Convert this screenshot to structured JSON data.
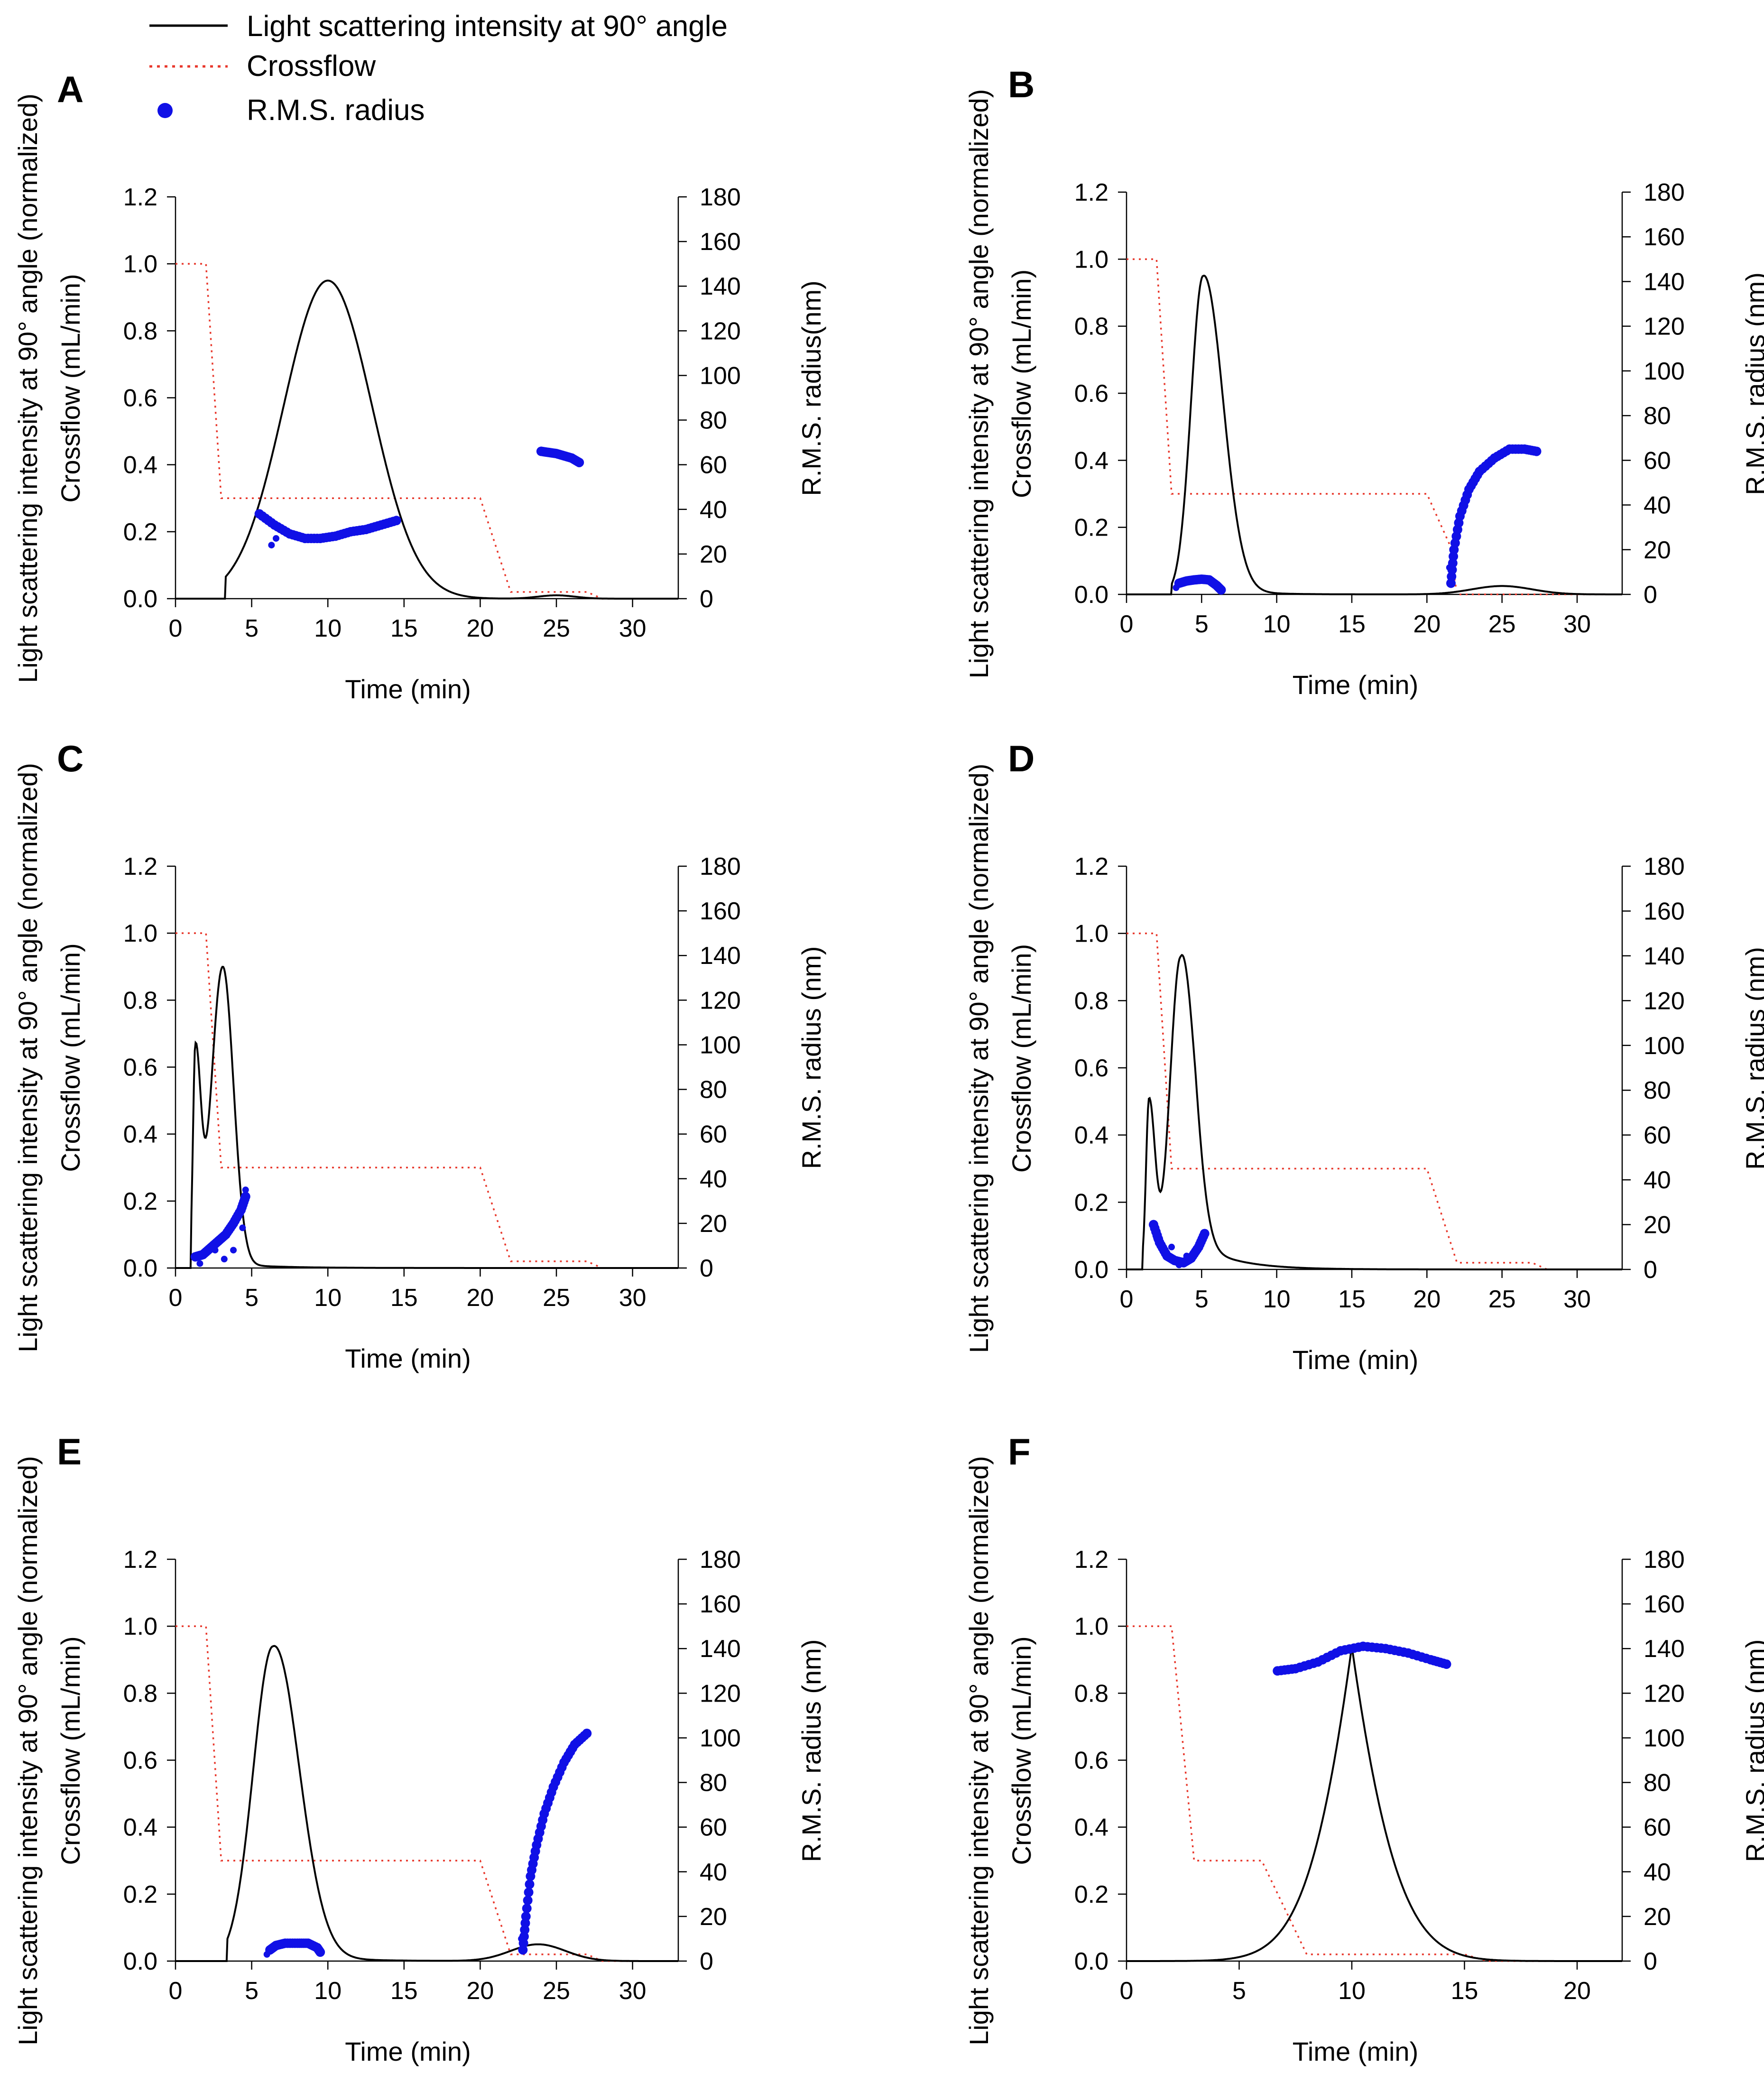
{
  "legend": {
    "light_scattering": "Light scattering intensity at 90° angle",
    "crossflow": "Crossflow",
    "rms": "R.M.S. radius"
  },
  "colors": {
    "ls": "#000000",
    "crossflow": "#e8382c",
    "rms": "#1010e6"
  },
  "chart_data": [
    {
      "panel": "A",
      "type": "line",
      "xlabel": "Time (min)",
      "ylabel_outer": "Light scattering intensity at 90° angle (normalized)",
      "ylabel_inner": "Crossflow (mL/min)",
      "ylabel_right": "R.M.S. radius(nm)",
      "xlim": [
        0,
        33
      ],
      "xticks": [
        0,
        5,
        10,
        15,
        20,
        25,
        30
      ],
      "ylim": [
        0,
        1.2
      ],
      "yticks": [
        "0.0",
        "0.2",
        "0.4",
        "0.6",
        "0.8",
        "1.0",
        "1.2"
      ],
      "y2lim": [
        0,
        180
      ],
      "y2ticks": [
        0,
        20,
        40,
        60,
        80,
        100,
        120,
        140,
        160,
        180
      ],
      "crossflow": [
        [
          0,
          1.0
        ],
        [
          2,
          1.0
        ],
        [
          3,
          0.3
        ],
        [
          20,
          0.3
        ],
        [
          22,
          0.02
        ],
        [
          27,
          0.02
        ],
        [
          28,
          0
        ],
        [
          33,
          0
        ]
      ],
      "scatter_peaks": [
        {
          "c": 10,
          "h": 0.95,
          "wl": 2.9,
          "wr": 2.9
        }
      ],
      "ls_start": 3.3,
      "bumps": [
        {
          "c": 25,
          "h": 0.01,
          "w": 1.2
        }
      ],
      "rms_segments": [
        {
          "points": [
            [
              5.5,
              38
            ],
            [
              6.5,
              33
            ],
            [
              7.5,
              29
            ],
            [
              8.5,
              27
            ],
            [
              9.5,
              27
            ],
            [
              10.5,
              28
            ],
            [
              11.5,
              30
            ],
            [
              12.5,
              31
            ],
            [
              13.5,
              33
            ],
            [
              14.5,
              35
            ]
          ]
        },
        {
          "points": [
            [
              24,
              66
            ],
            [
              24.5,
              65.5
            ],
            [
              25,
              65
            ],
            [
              25.5,
              64
            ],
            [
              26,
              63
            ],
            [
              26.5,
              61
            ]
          ]
        }
      ],
      "rms_stray": [
        [
          6.3,
          24
        ],
        [
          6.6,
          27
        ]
      ]
    },
    {
      "panel": "B",
      "type": "line",
      "xlabel": "Time (min)",
      "ylabel_outer": "Light scattering intensity at 90° angle (normalized)",
      "ylabel_inner": "Crossflow (mL/min)",
      "ylabel_right": "R.M.S. radius (nm)",
      "xlim": [
        0,
        33
      ],
      "xticks": [
        0,
        5,
        10,
        15,
        20,
        25,
        30
      ],
      "ylim": [
        0,
        1.2
      ],
      "yticks": [
        "0.0",
        "0.2",
        "0.4",
        "0.6",
        "0.8",
        "1.0",
        "1.2"
      ],
      "y2lim": [
        0,
        180
      ],
      "y2ticks": [
        0,
        20,
        40,
        60,
        80,
        100,
        120,
        140,
        160,
        180
      ],
      "crossflow": [
        [
          0,
          1.0
        ],
        [
          2,
          1.0
        ],
        [
          3,
          0.3
        ],
        [
          20,
          0.3
        ],
        [
          21.5,
          0.15
        ],
        [
          22,
          0
        ],
        [
          33,
          0
        ]
      ],
      "scatter_peaks": [
        {
          "c": 5.1,
          "h": 0.95,
          "wl": 0.8,
          "wr": 1.3
        }
      ],
      "ls_start": 3.0,
      "tail": {
        "h": 0.02,
        "tau": 2
      },
      "bumps": [
        {
          "c": 25,
          "h": 0.025,
          "w": 2
        }
      ],
      "rms_segments": [
        {
          "points": [
            [
              3.5,
              5
            ],
            [
              4,
              6
            ],
            [
              4.5,
              6.5
            ],
            [
              5,
              6.8
            ],
            [
              5.5,
              6.5
            ],
            [
              6,
              4
            ],
            [
              6.3,
              2
            ]
          ]
        },
        {
          "points": [
            [
              21.6,
              5
            ],
            [
              21.8,
              20
            ],
            [
              22.2,
              35
            ],
            [
              22.8,
              47
            ],
            [
              23.5,
              55
            ],
            [
              24.5,
              61
            ],
            [
              25.5,
              65
            ],
            [
              26.5,
              65
            ],
            [
              27.3,
              64
            ]
          ]
        }
      ],
      "rms_stray": [
        [
          3.3,
          3
        ],
        [
          21.5,
          12
        ]
      ]
    },
    {
      "panel": "C",
      "type": "line",
      "xlabel": "Time (min)",
      "ylabel_outer": "Light scattering intensity at 90° angle (normalized)",
      "ylabel_inner": "Crossflow (mL/min)",
      "ylabel_right": "R.M.S. radius (nm)",
      "xlim": [
        0,
        33
      ],
      "xticks": [
        0,
        5,
        10,
        15,
        20,
        25,
        30
      ],
      "ylim": [
        0,
        1.2
      ],
      "yticks": [
        "0.0",
        "0.2",
        "0.4",
        "0.6",
        "0.8",
        "1.0",
        "1.2"
      ],
      "y2lim": [
        0,
        180
      ],
      "y2ticks": [
        0,
        20,
        40,
        60,
        80,
        100,
        120,
        140,
        160,
        180
      ],
      "crossflow": [
        [
          0,
          1.0
        ],
        [
          2,
          1.0
        ],
        [
          3,
          0.3
        ],
        [
          20,
          0.3
        ],
        [
          22,
          0.02
        ],
        [
          27,
          0.02
        ],
        [
          28,
          0
        ],
        [
          33,
          0
        ]
      ],
      "scatter_peaks": [
        {
          "c": 1.3,
          "h": 0.62,
          "wl": 0.15,
          "wr": 0.35
        },
        {
          "c": 3.1,
          "h": 0.9,
          "wl": 0.75,
          "wr": 0.7
        }
      ],
      "ls_start": 1.0,
      "tail": {
        "h": 0.01,
        "tau": 3
      },
      "bumps": [],
      "rms_segments": [
        {
          "points": [
            [
              1.3,
              5
            ],
            [
              1.8,
              6
            ],
            [
              2.3,
              9
            ],
            [
              2.8,
              12
            ],
            [
              3.3,
              15
            ],
            [
              3.8,
              20
            ],
            [
              4.3,
              26
            ],
            [
              4.6,
              32
            ]
          ]
        }
      ],
      "rms_stray": [
        [
          1.6,
          2
        ],
        [
          2.6,
          8
        ],
        [
          3.2,
          4
        ],
        [
          3.8,
          8
        ],
        [
          4.4,
          18
        ],
        [
          4.6,
          35
        ]
      ]
    },
    {
      "panel": "D",
      "type": "line",
      "xlabel": "Time (min)",
      "ylabel_outer": "Light scattering intensity at 90° angle (normalized)",
      "ylabel_inner": "Crossflow (mL/min)",
      "ylabel_right": "R.M.S. radius (nm)",
      "xlim": [
        0,
        33
      ],
      "xticks": [
        0,
        5,
        10,
        15,
        20,
        25,
        30
      ],
      "ylim": [
        0,
        1.2
      ],
      "yticks": [
        "0.0",
        "0.2",
        "0.4",
        "0.6",
        "0.8",
        "1.0",
        "1.2"
      ],
      "y2lim": [
        0,
        180
      ],
      "y2ticks": [
        0,
        20,
        40,
        60,
        80,
        100,
        120,
        140,
        160,
        180
      ],
      "crossflow": [
        [
          0,
          1.0
        ],
        [
          2,
          1.0
        ],
        [
          3,
          0.3
        ],
        [
          20,
          0.3
        ],
        [
          22,
          0.02
        ],
        [
          27,
          0.02
        ],
        [
          28,
          0
        ],
        [
          33,
          0
        ]
      ],
      "scatter_peaks": [
        {
          "c": 1.5,
          "h": 0.5,
          "wl": 0.2,
          "wr": 0.4
        },
        {
          "c": 3.6,
          "h": 0.93,
          "wl": 0.7,
          "wr": 0.9
        }
      ],
      "ls_start": 1.1,
      "tail": {
        "h": 0.08,
        "tau": 2.5
      },
      "bumps": [],
      "rms_segments": [
        {
          "points": [
            [
              1.8,
              20
            ],
            [
              2.2,
              12
            ],
            [
              2.7,
              6
            ],
            [
              3.2,
              4
            ],
            [
              3.8,
              3
            ],
            [
              4.3,
              5
            ],
            [
              4.8,
              10
            ],
            [
              5.2,
              16
            ]
          ]
        }
      ],
      "rms_stray": [
        [
          2,
          14
        ],
        [
          2.5,
          8
        ],
        [
          3,
          10
        ],
        [
          3.5,
          2
        ],
        [
          4,
          6
        ]
      ]
    },
    {
      "panel": "E",
      "type": "line",
      "xlabel": "Time (min)",
      "ylabel_outer": "Light scattering intensity at 90° angle (normalized)",
      "ylabel_inner": "Crossflow (mL/min)",
      "ylabel_right": "R.M.S. radius (nm)",
      "xlim": [
        0,
        33
      ],
      "xticks": [
        0,
        5,
        10,
        15,
        20,
        25,
        30
      ],
      "ylim": [
        0,
        1.2
      ],
      "yticks": [
        "0.0",
        "0.2",
        "0.4",
        "0.6",
        "0.8",
        "1.0",
        "1.2"
      ],
      "y2lim": [
        0,
        180
      ],
      "y2ticks": [
        0,
        20,
        40,
        60,
        80,
        100,
        120,
        140,
        160,
        180
      ],
      "crossflow": [
        [
          0,
          1.0
        ],
        [
          2,
          1.0
        ],
        [
          3,
          0.3
        ],
        [
          20,
          0.3
        ],
        [
          22,
          0.02
        ],
        [
          27,
          0.02
        ],
        [
          28,
          0
        ],
        [
          33,
          0
        ]
      ],
      "scatter_peaks": [
        {
          "c": 6.4,
          "h": 0.94,
          "wl": 1.3,
          "wr": 1.7
        }
      ],
      "ls_start": 3.4,
      "tail": {
        "h": 0.02,
        "tau": 3
      },
      "bumps": [
        {
          "c": 23.8,
          "h": 0.05,
          "w": 1.8
        }
      ],
      "rms_segments": [
        {
          "points": [
            [
              6.2,
              5
            ],
            [
              6.6,
              7
            ],
            [
              7.2,
              8
            ],
            [
              8,
              8
            ],
            [
              8.7,
              8
            ],
            [
              9.3,
              6
            ],
            [
              9.5,
              4
            ]
          ]
        },
        {
          "points": [
            [
              22.8,
              5
            ],
            [
              23,
              20
            ],
            [
              23.3,
              38
            ],
            [
              23.7,
              52
            ],
            [
              24.2,
              66
            ],
            [
              24.8,
              78
            ],
            [
              25.5,
              89
            ],
            [
              26.2,
              97
            ],
            [
              27,
              102
            ]
          ]
        }
      ],
      "rms_stray": [
        [
          6,
          3
        ],
        [
          22.7,
          10
        ]
      ]
    },
    {
      "panel": "F",
      "type": "line",
      "xlabel": "Time (min)",
      "ylabel_outer": "Light scattering intensity at 90° angle (normalized)",
      "ylabel_inner": "Crossflow (mL/min)",
      "ylabel_right": "R.M.S. radius (nm)",
      "xlim": [
        0,
        22
      ],
      "xticks": [
        0,
        5,
        10,
        15,
        20
      ],
      "ylim": [
        0,
        1.2
      ],
      "yticks": [
        "0.0",
        "0.2",
        "0.4",
        "0.6",
        "0.8",
        "1.0",
        "1.2"
      ],
      "y2lim": [
        0,
        180
      ],
      "y2ticks": [
        0,
        20,
        40,
        60,
        80,
        100,
        120,
        140,
        160,
        180
      ],
      "crossflow": [
        [
          0,
          1.0
        ],
        [
          2,
          1.0
        ],
        [
          3,
          0.3
        ],
        [
          6,
          0.3
        ],
        [
          8,
          0.02
        ],
        [
          15,
          0.02
        ],
        [
          16,
          0
        ],
        [
          22,
          0
        ]
      ],
      "scatter_peaks": [
        {
          "c": 10,
          "h": 0.94,
          "wl": 1.9,
          "wr": 2.0
        }
      ],
      "ls_start": 1.0,
      "sharp_peak": true,
      "bumps": [],
      "rms_segments": [
        {
          "points": [
            [
              6.7,
              130
            ],
            [
              7.5,
              131
            ],
            [
              8.5,
              134
            ],
            [
              9.5,
              139
            ],
            [
              10.5,
              141
            ],
            [
              11.5,
              140
            ],
            [
              12.5,
              138
            ],
            [
              13.5,
              135
            ],
            [
              14.2,
              133
            ]
          ]
        }
      ],
      "rms_stray": []
    }
  ]
}
